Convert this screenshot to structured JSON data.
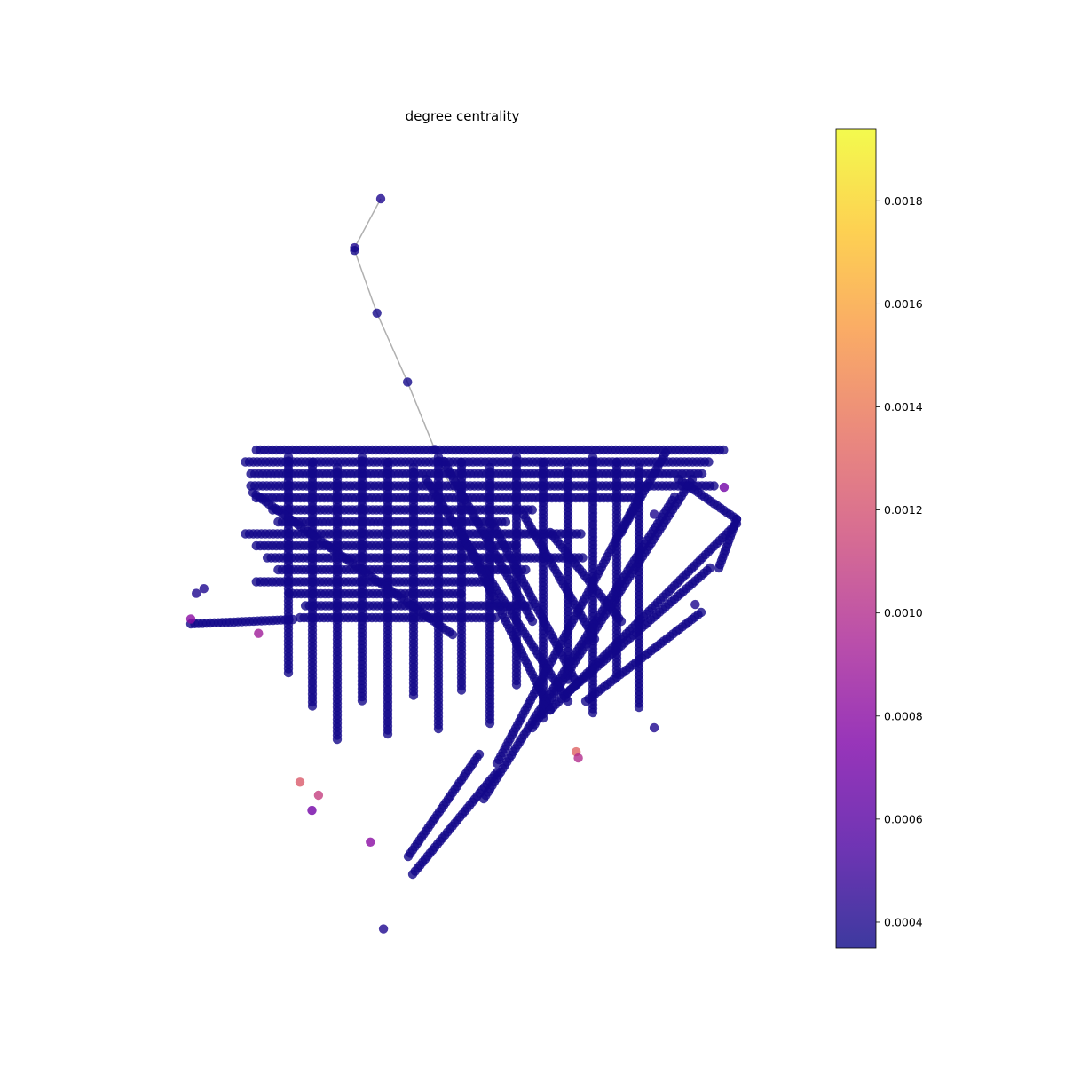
{
  "chart_data": {
    "type": "scatter",
    "subtype": "network-graph",
    "title": "degree centrality",
    "xlabel": "",
    "ylabel": "",
    "axes_visible": false,
    "grid": false,
    "colormap": "plasma",
    "node_alpha": 0.8,
    "edge_color": "#b0b0b0",
    "colorbar": {
      "range": [
        0.00035,
        0.00194
      ],
      "ticks": [
        0.0004,
        0.0006,
        0.0008,
        0.001,
        0.0012,
        0.0014,
        0.0016,
        0.0018
      ],
      "tick_labels": [
        "0.0004",
        "0.0006",
        "0.0008",
        "0.0010",
        "0.0012",
        "0.0014",
        "0.0016",
        "0.0018"
      ],
      "placement": "right"
    },
    "x_range": [
      0,
      100
    ],
    "y_range": [
      0,
      100
    ],
    "outliers": [
      {
        "x": 34.8,
        "y": 100.0,
        "value": 0.0004
      },
      {
        "x": 30.0,
        "y": 92.9,
        "value": 0.0004
      },
      {
        "x": 30.0,
        "y": 92.5,
        "value": 0.00037
      },
      {
        "x": 34.1,
        "y": 83.4,
        "value": 0.00037
      },
      {
        "x": 39.7,
        "y": 73.4,
        "value": 0.00037
      },
      {
        "x": 44.7,
        "y": 63.6,
        "value": 0.00037
      },
      {
        "x": 1.0,
        "y": 42.7,
        "value": 0.0004
      },
      {
        "x": 2.4,
        "y": 43.4,
        "value": 0.0004
      },
      {
        "x": 0.0,
        "y": 39.0,
        "value": 0.0008
      },
      {
        "x": 12.4,
        "y": 36.9,
        "value": 0.0009
      },
      {
        "x": 20.0,
        "y": 15.3,
        "value": 0.00125
      },
      {
        "x": 23.4,
        "y": 13.4,
        "value": 0.0011
      },
      {
        "x": 22.2,
        "y": 11.2,
        "value": 0.0007
      },
      {
        "x": 32.9,
        "y": 6.6,
        "value": 0.0008
      },
      {
        "x": 84.9,
        "y": 23.2,
        "value": 0.0004
      },
      {
        "x": 70.6,
        "y": 19.7,
        "value": 0.0013
      },
      {
        "x": 71.0,
        "y": 18.8,
        "value": 0.001
      },
      {
        "x": 35.3,
        "y": -6.0,
        "value": 0.0004
      },
      {
        "x": 97.7,
        "y": 58.1,
        "value": 0.0007
      },
      {
        "x": 92.4,
        "y": 41.1,
        "value": 0.0004
      },
      {
        "x": 84.9,
        "y": 54.2,
        "value": 0.0004
      }
    ],
    "network_streets": [
      {
        "y": 54.0,
        "x": [
          12,
          98
        ]
      },
      {
        "y": 57.5,
        "x": [
          10,
          95
        ]
      },
      {
        "y": 60.0,
        "x": [
          11,
          94
        ]
      },
      {
        "y": 64.0,
        "x": [
          11,
          96
        ]
      },
      {
        "y": 67.5,
        "x": [
          12,
          82
        ]
      },
      {
        "y": 70.0,
        "x": [
          15,
          63
        ]
      },
      {
        "y": 72.5,
        "x": [
          16,
          58
        ]
      },
      {
        "y": 76.0,
        "x": [
          10,
          72
        ]
      },
      {
        "y": 80.0,
        "x": [
          12,
          60
        ]
      },
      {
        "y": 84.5,
        "x": [
          14,
          72
        ]
      },
      {
        "y": 88.0,
        "x": [
          16,
          62
        ]
      },
      {
        "y": 92.0,
        "x": [
          12,
          55
        ]
      },
      {
        "y": 96.0,
        "x": [
          18,
          50
        ]
      },
      {
        "y": 100.0,
        "x": [
          21,
          62
        ]
      },
      {
        "y": 104.0,
        "x": [
          20,
          56
        ]
      }
    ]
  }
}
